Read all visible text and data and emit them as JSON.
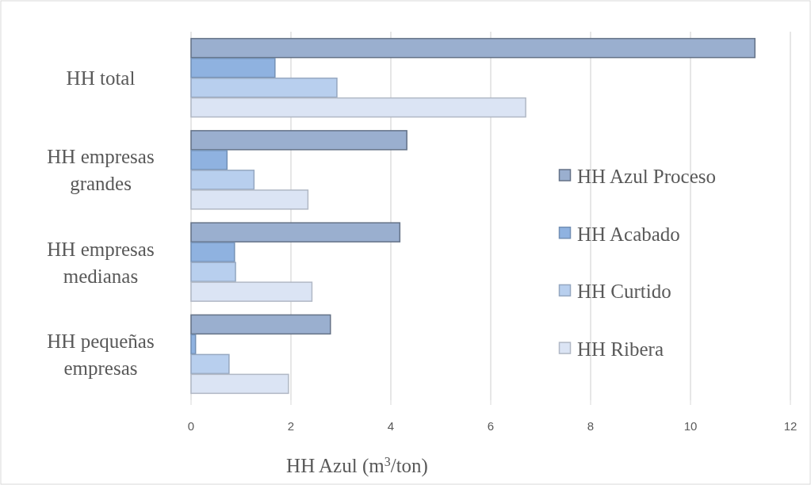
{
  "chart_data": {
    "type": "bar",
    "orientation": "horizontal",
    "categories": [
      "HH total",
      "HH empresas grandes",
      "HH empresas medianas",
      "HH pequeñas empresas"
    ],
    "series": [
      {
        "name": "HH Azul Proceso",
        "color": "#9aafcf",
        "values": [
          11.29,
          4.32,
          4.18,
          2.79
        ]
      },
      {
        "name": "HH Acabado",
        "color": "#8fb2e0",
        "values": [
          1.68,
          0.72,
          0.87,
          0.09
        ]
      },
      {
        "name": "HH Curtido",
        "color": "#b8cfee",
        "values": [
          2.92,
          1.26,
          0.89,
          0.76
        ]
      },
      {
        "name": "HH Ribera",
        "color": "#dbe4f4",
        "values": [
          6.7,
          2.34,
          2.42,
          1.95
        ]
      }
    ],
    "xlim": [
      0,
      12
    ],
    "xticks": [
      0,
      2,
      4,
      6,
      8,
      10,
      12
    ],
    "xlabel": "HH Azul (m$^{3}$/ton)",
    "grid": "x",
    "legend": "right"
  }
}
